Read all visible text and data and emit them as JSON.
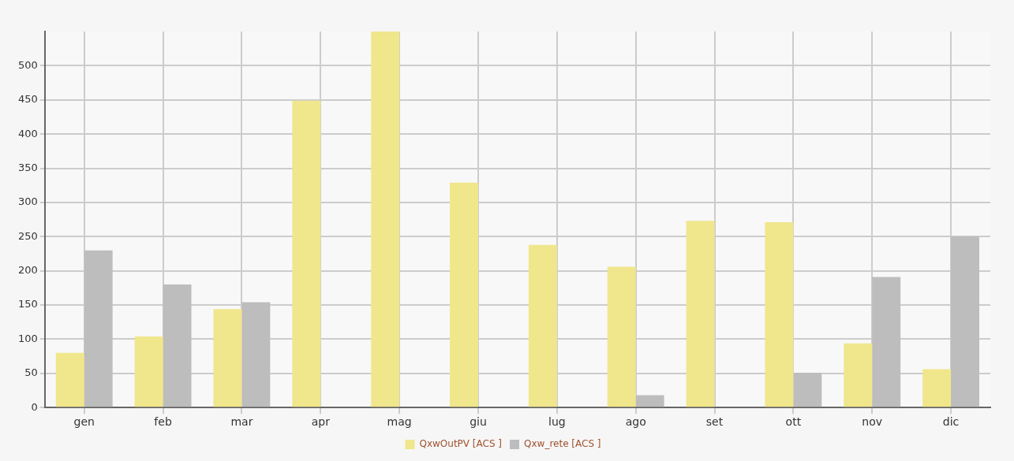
{
  "chart_data": {
    "type": "bar",
    "categories": [
      "gen",
      "feb",
      "mar",
      "apr",
      "mag",
      "giu",
      "lug",
      "ago",
      "set",
      "ott",
      "nov",
      "dic"
    ],
    "series": [
      {
        "name": "QxwOutPV [ACS ]",
        "color": "#f0e68c",
        "values": [
          80,
          104,
          144,
          449,
          550,
          329,
          238,
          206,
          273,
          271,
          94,
          56
        ]
      },
      {
        "name": "Qxw_rete [ACS ]",
        "color": "#bdbdbd",
        "values": [
          230,
          180,
          154,
          0,
          0,
          0,
          0,
          18,
          0,
          51,
          191,
          250
        ]
      }
    ],
    "ylim": [
      0,
      550
    ],
    "yticks": [
      0,
      50,
      100,
      150,
      200,
      250,
      300,
      350,
      400,
      450,
      500
    ],
    "grid": true,
    "legend": "bottom"
  }
}
